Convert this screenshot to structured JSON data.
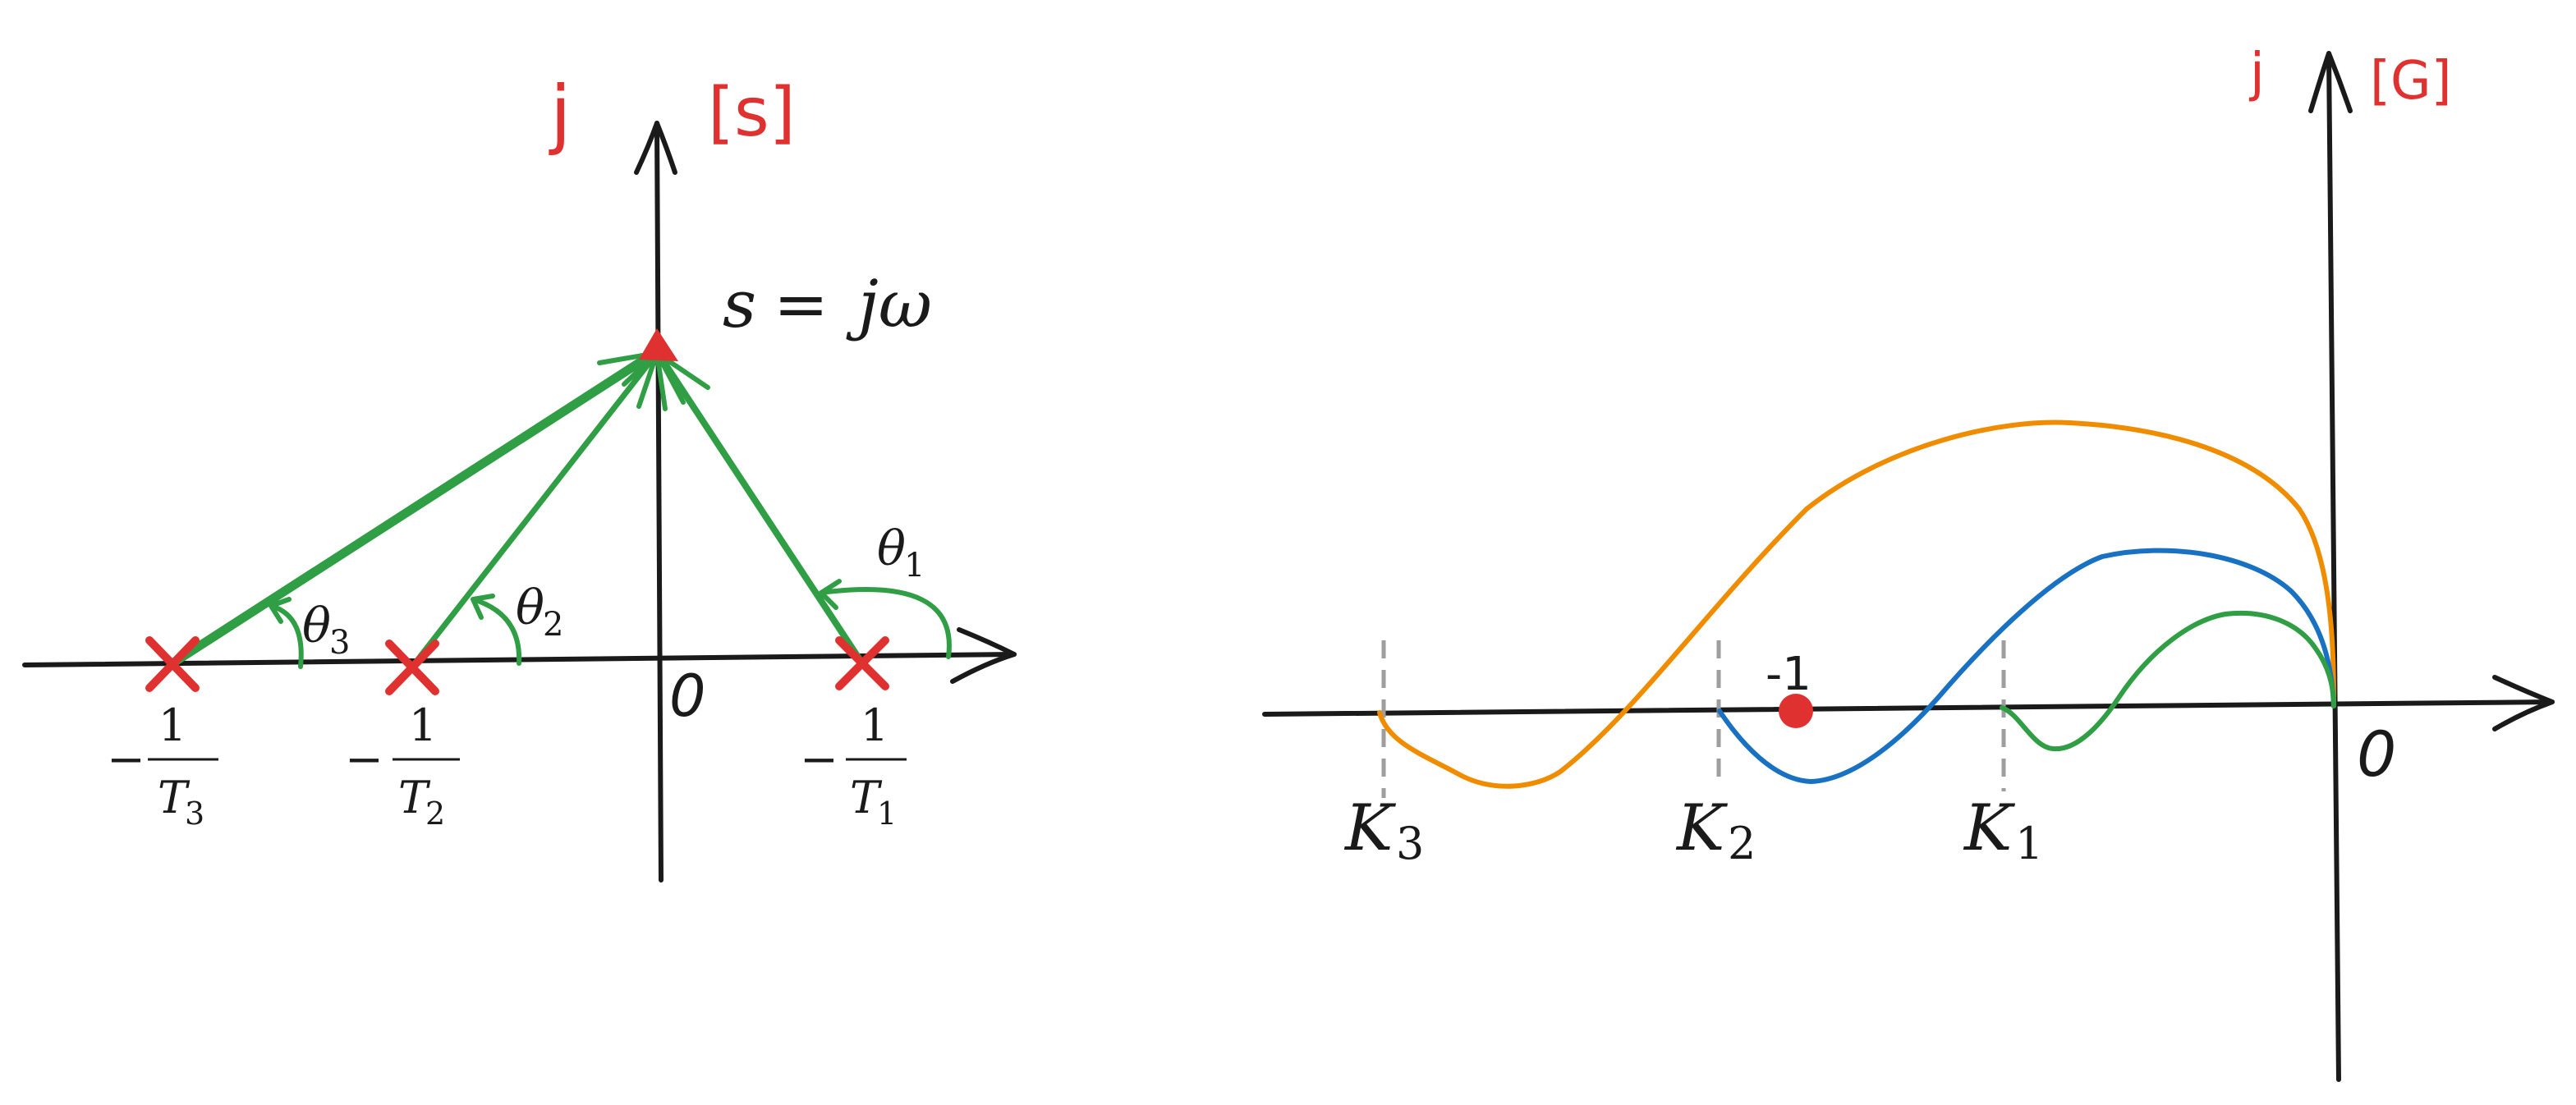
{
  "s_plane": {
    "imag_axis_label": "j",
    "plane_label": "[s]",
    "origin_label": "0",
    "point_label_lhs": "s",
    "point_label_eq": "=",
    "point_label_rhs": "jω",
    "poles": [
      {
        "numerator": "1",
        "prefix": "−",
        "denominator_base": "T",
        "denominator_sub": "3",
        "angle_base": "θ",
        "angle_sub": "3"
      },
      {
        "numerator": "1",
        "prefix": "−",
        "denominator_base": "T",
        "denominator_sub": "2",
        "angle_base": "θ",
        "angle_sub": "2"
      },
      {
        "numerator": "1",
        "prefix": "−",
        "denominator_base": "T",
        "denominator_sub": "1",
        "angle_base": "θ",
        "angle_sub": "1"
      }
    ],
    "colors": {
      "axis": "#1a1a1a",
      "label": "#e03131",
      "vectors": "#2f9e44",
      "poles": "#e03131"
    }
  },
  "g_plane": {
    "imag_axis_label": "j",
    "plane_label": "[G]",
    "origin_label": "0",
    "critical_point_label": "-1",
    "crossings": [
      {
        "base": "K",
        "sub": "3",
        "color": "#f08c00"
      },
      {
        "base": "K",
        "sub": "2",
        "color": "#1971c2"
      },
      {
        "base": "K",
        "sub": "1",
        "color": "#2f9e44"
      }
    ],
    "colors": {
      "axis": "#1a1a1a",
      "label": "#e03131",
      "critical_point": "#e03131",
      "markers": "#9e9e9e"
    }
  }
}
